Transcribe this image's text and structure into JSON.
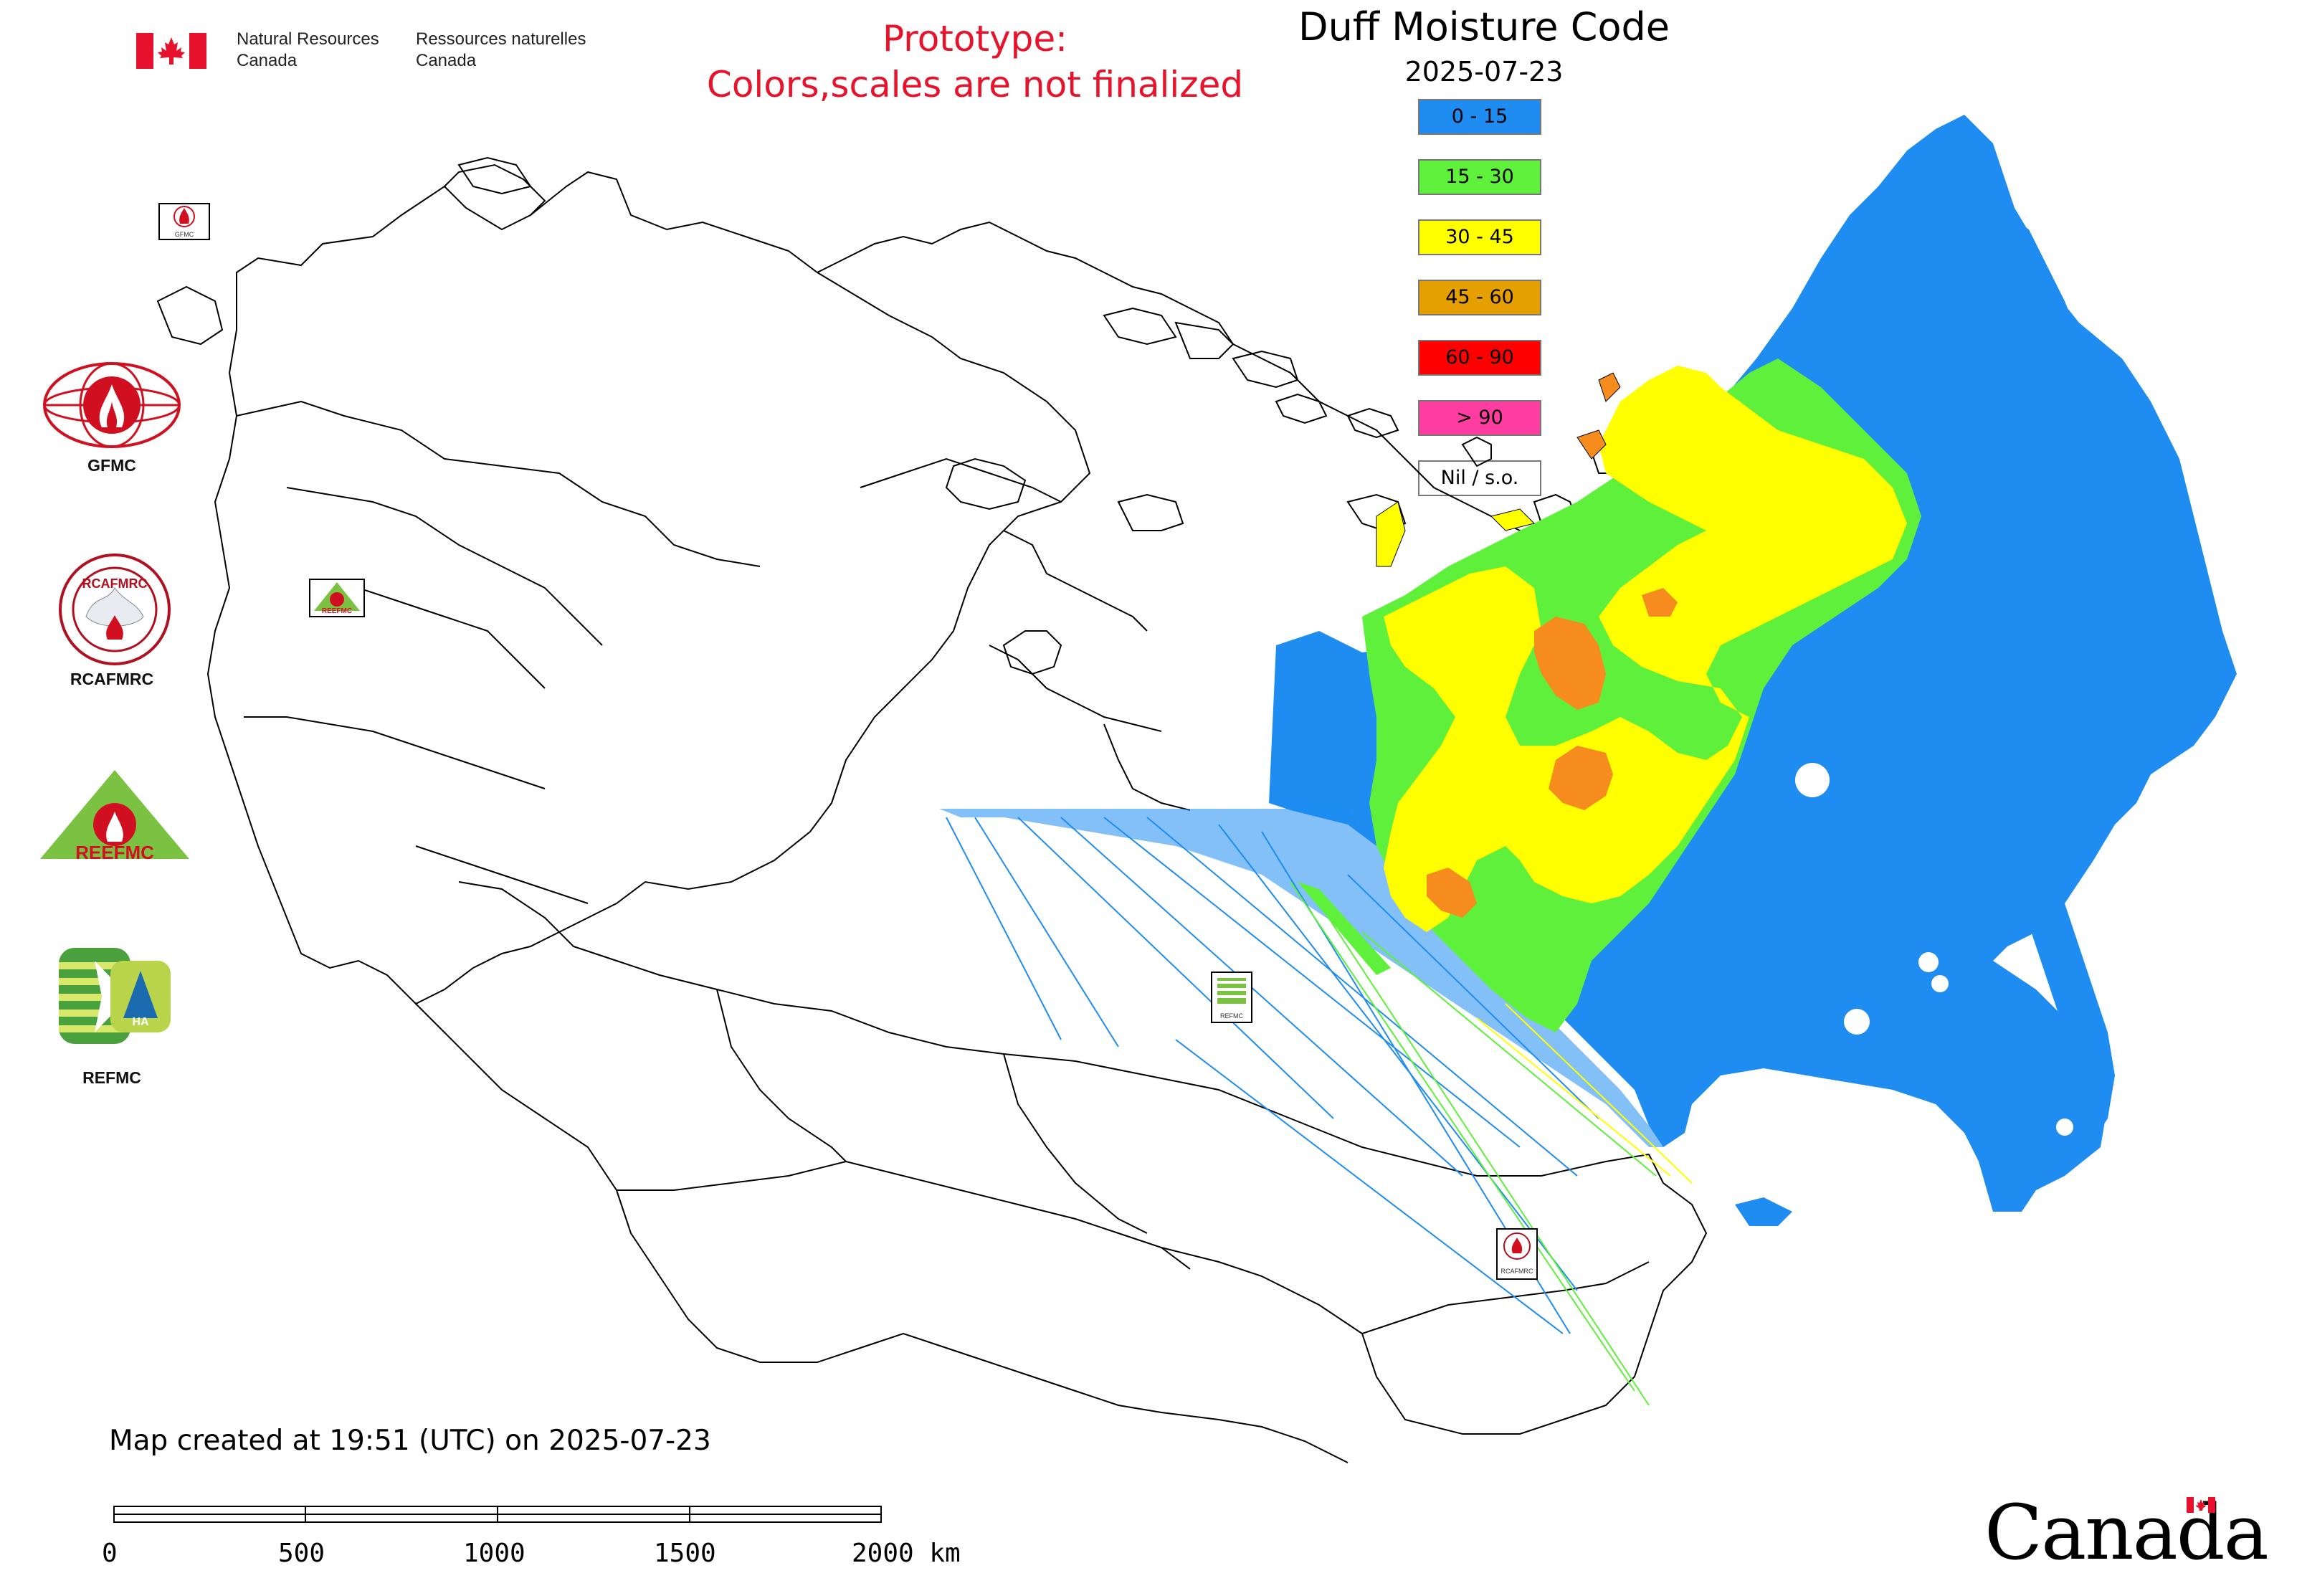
{
  "header": {
    "dept_en_line1": "Natural Resources",
    "dept_en_line2": "Canada",
    "dept_fr_line1": "Ressources naturelles",
    "dept_fr_line2": "Canada"
  },
  "notice": {
    "line1": "Prototype:",
    "line2": "Colors,scales are not finalized"
  },
  "map": {
    "title": "Duff Moisture Code",
    "date": "2025-07-23",
    "created_text": "Map created at 19:51 (UTC) on 2025-07-23"
  },
  "legend": [
    {
      "label": "0 - 15",
      "color": "#1e8cf0"
    },
    {
      "label": "15 - 30",
      "color": "#5ef03a"
    },
    {
      "label": "30 - 45",
      "color": "#ffff00"
    },
    {
      "label": "45 - 60",
      "color": "#e5a000"
    },
    {
      "label": "60 - 90",
      "color": "#ff0000"
    },
    {
      "label": "> 90",
      "color": "#ff3ca0"
    },
    {
      "label": "Nil / s.o.",
      "color": "#ffffff"
    }
  ],
  "side_logos": [
    {
      "label": "GFMC",
      "icon": "gfmc-logo-icon"
    },
    {
      "label": "RCAFMRC",
      "icon": "rcafmrc-logo-icon"
    },
    {
      "label": "REEFMC",
      "icon": "reefmc-logo-icon"
    },
    {
      "label": "REFMC",
      "icon": "refmc-logo-icon"
    }
  ],
  "map_markers": [
    {
      "label": "GFMC"
    },
    {
      "label": "REEFMC"
    },
    {
      "label": "REFMC"
    },
    {
      "label": "RCAFMRC"
    }
  ],
  "logo_text": {
    "rcafmrc_inner": "RCAFMRC",
    "reefmc_inner": "REEFMC",
    "refmc_inner": "HA"
  },
  "scale": {
    "ticks": [
      "0",
      "500",
      "1000",
      "1500",
      "2000 km"
    ]
  },
  "wordmark": "Canada"
}
